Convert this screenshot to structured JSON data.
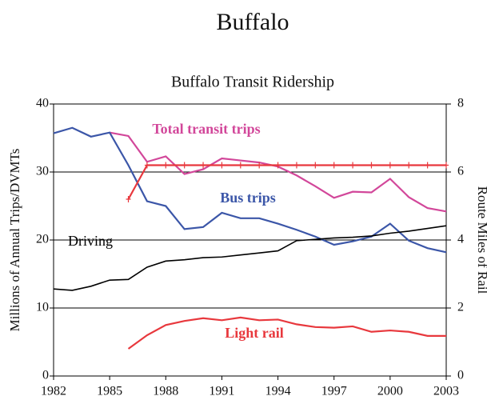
{
  "chart_data": {
    "type": "line",
    "header": "Buffalo",
    "title": "Buffalo Transit Ridership",
    "ylabel": "Millions of Annual Trips/DVMTs",
    "y2label": "Route Miles of Rail",
    "x": [
      1982,
      1983,
      1984,
      1985,
      1986,
      1987,
      1988,
      1989,
      1990,
      1991,
      1992,
      1993,
      1994,
      1995,
      1996,
      1997,
      1998,
      1999,
      2000,
      2001,
      2002,
      2003
    ],
    "xlim": [
      1982,
      2003
    ],
    "xticks": [
      1982,
      1985,
      1988,
      1991,
      1994,
      1997,
      2000,
      2003
    ],
    "ylim": [
      0,
      40
    ],
    "yticks": [
      0,
      10,
      20,
      30,
      40
    ],
    "y2lim": [
      0,
      8
    ],
    "y2ticks": [
      0,
      2,
      4,
      6,
      8
    ],
    "grid": true,
    "series": [
      {
        "name": "Total transit trips",
        "color": "#d2479a",
        "values": [
          null,
          null,
          null,
          35.8,
          35.3,
          31.5,
          32.3,
          29.7,
          30.4,
          32.0,
          31.7,
          31.4,
          30.8,
          29.5,
          27.9,
          26.2,
          27.1,
          27.0,
          29.0,
          26.3,
          24.7,
          24.2
        ]
      },
      {
        "name": "Bus trips",
        "color": "#3b56a8",
        "values": [
          35.7,
          36.5,
          35.2,
          35.8,
          31.0,
          25.7,
          25.0,
          21.6,
          21.9,
          24.0,
          23.2,
          23.2,
          22.4,
          21.5,
          20.5,
          19.3,
          19.8,
          20.5,
          22.4,
          19.9,
          18.8,
          18.2
        ]
      },
      {
        "name": "Driving",
        "color": "#000000",
        "values": [
          12.8,
          12.6,
          13.2,
          14.1,
          14.2,
          16.0,
          16.9,
          17.1,
          17.4,
          17.5,
          17.8,
          18.1,
          18.4,
          19.9,
          20.1,
          20.3,
          20.4,
          20.6,
          21.0,
          21.3,
          21.7,
          22.1
        ]
      },
      {
        "name": "Light rail",
        "color": "#e8383d",
        "values": [
          null,
          null,
          null,
          null,
          4.0,
          6.0,
          7.5,
          8.1,
          8.5,
          8.2,
          8.6,
          8.2,
          8.3,
          7.6,
          7.2,
          7.1,
          7.3,
          6.5,
          6.7,
          6.5,
          5.9,
          5.9
        ]
      },
      {
        "color": "#e8383d",
        "axis": "y2",
        "marker": "+",
        "values": [
          null,
          null,
          null,
          null,
          5.2,
          6.2,
          6.2,
          6.2,
          6.2,
          6.2,
          6.2,
          6.2,
          6.2,
          6.2,
          6.2,
          6.2,
          6.2,
          6.2,
          6.2,
          6.2,
          6.2,
          6.2
        ]
      }
    ]
  }
}
